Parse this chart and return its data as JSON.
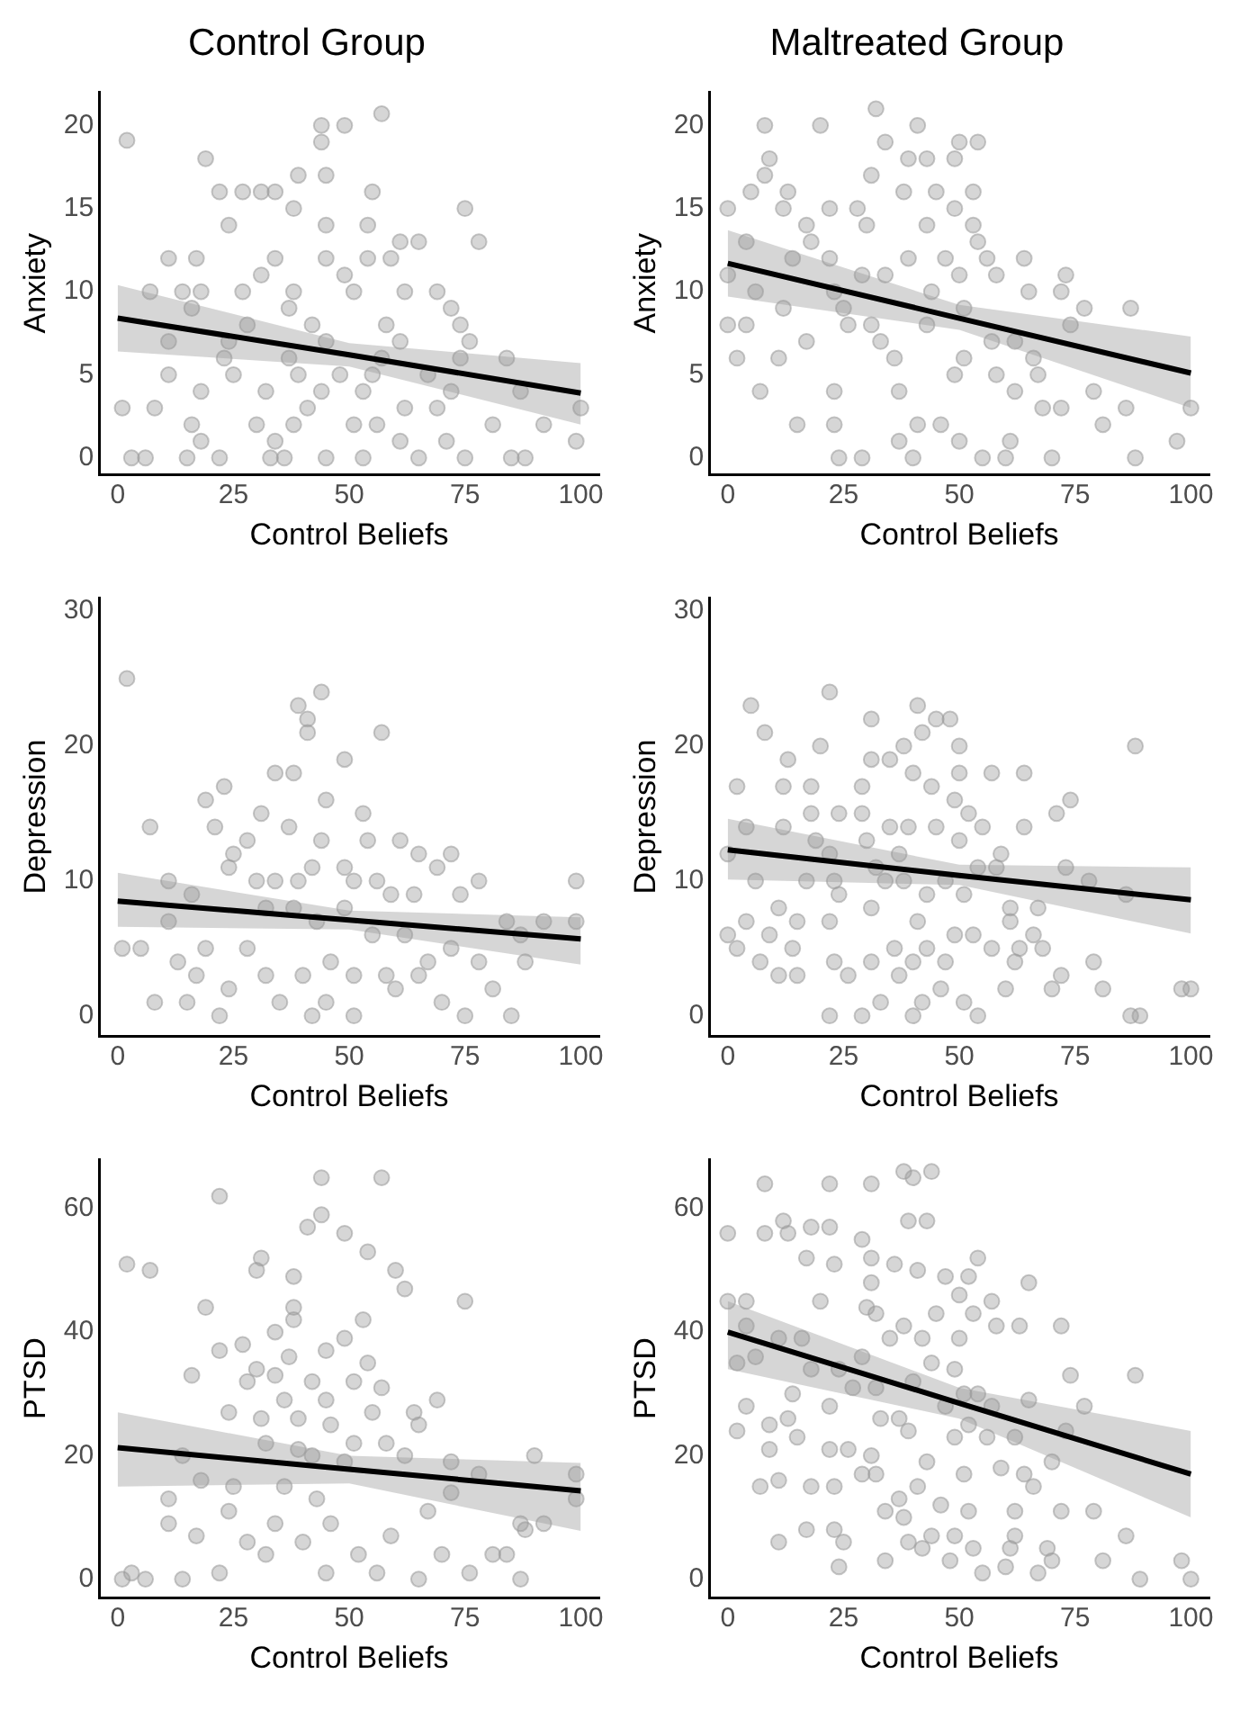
{
  "chart_data": [
    {
      "type": "scatter",
      "title": "Control Group",
      "xlabel": "Control Beliefs",
      "ylabel": "Anxiety",
      "xlim": [
        -4,
        104
      ],
      "xticks": [
        0,
        25,
        50,
        75,
        100
      ],
      "ylim": [
        -1,
        22
      ],
      "yticks": [
        0,
        5,
        10,
        15,
        20
      ],
      "marker": "circle",
      "series": [
        {
          "type": "scatter",
          "color": "#999999",
          "x": [
            2,
            19,
            57,
            44,
            49,
            44,
            39,
            45,
            22,
            27,
            31,
            34,
            55,
            38,
            75,
            24,
            45,
            54,
            61,
            65,
            78,
            11,
            17,
            34,
            45,
            54,
            59,
            31,
            49,
            7,
            14,
            18,
            27,
            38,
            51,
            62,
            69,
            16,
            37,
            72,
            28,
            42,
            58,
            74,
            11,
            24,
            45,
            61,
            76,
            23,
            37,
            57,
            74,
            84,
            11,
            25,
            39,
            48,
            55,
            67,
            18,
            32,
            44,
            53,
            72,
            87,
            1,
            8,
            41,
            62,
            69,
            100,
            16,
            30,
            38,
            51,
            56,
            81,
            92,
            18,
            34,
            61,
            71,
            99,
            3,
            6,
            15,
            22,
            33,
            36,
            45,
            53,
            65,
            75,
            85,
            88
          ],
          "values": [
            19.1,
            18,
            20.7,
            20,
            20,
            19,
            17,
            17,
            16,
            16,
            16,
            16,
            16,
            15,
            15,
            14,
            14,
            14,
            13,
            13,
            13,
            12,
            12,
            12,
            12,
            12,
            12,
            11,
            11,
            10,
            10,
            10,
            10,
            10,
            10,
            10,
            10,
            9,
            9,
            9,
            8,
            8,
            8,
            8,
            7,
            7,
            7,
            7,
            7,
            6,
            6,
            6,
            6,
            6,
            5,
            5,
            5,
            5,
            5,
            5,
            4,
            4,
            4,
            4,
            4,
            4,
            3,
            3,
            3,
            3,
            3,
            3,
            2,
            2,
            2,
            2,
            2,
            2,
            2,
            1,
            1,
            1,
            1,
            1,
            0,
            0,
            0,
            0,
            0,
            0,
            0,
            0,
            0,
            0,
            0,
            0
          ]
        },
        {
          "type": "line",
          "marker": "none",
          "color": "#000000",
          "x": [
            0,
            50,
            100
          ],
          "values": [
            8.4,
            6.2,
            3.9
          ],
          "lower": [
            6.4,
            5.5,
            2.0
          ],
          "upper": [
            10.4,
            6.9,
            5.7
          ]
        }
      ]
    },
    {
      "type": "scatter",
      "title": "Maltreated Group",
      "xlabel": "Control Beliefs",
      "ylabel": "Anxiety",
      "xlim": [
        -4,
        104
      ],
      "xticks": [
        0,
        25,
        50,
        75,
        100
      ],
      "ylim": [
        -1,
        22
      ],
      "yticks": [
        0,
        5,
        10,
        15,
        20
      ],
      "marker": "circle",
      "series": [
        {
          "type": "scatter",
          "color": "#999999",
          "x": [
            0,
            0,
            0,
            2,
            4,
            4,
            5,
            6,
            8,
            8,
            9,
            7,
            11,
            12,
            12,
            13,
            14,
            15,
            17,
            17,
            18,
            20,
            22,
            22,
            23,
            23,
            23,
            24,
            25,
            26,
            28,
            29,
            29,
            30,
            31,
            32,
            31,
            33,
            34,
            34,
            36,
            37,
            37,
            39,
            38,
            39,
            40,
            41,
            41,
            43,
            43,
            43,
            44,
            45,
            46,
            47,
            49,
            49,
            49,
            50,
            50,
            51,
            51,
            50,
            53,
            53,
            54,
            54,
            55,
            56,
            57,
            58,
            58,
            60,
            61,
            62,
            62,
            64,
            65,
            66,
            67,
            68,
            70,
            72,
            72,
            73,
            74,
            77,
            79,
            81,
            86,
            87,
            88,
            97,
            100
          ],
          "values": [
            15,
            11,
            8,
            6,
            13,
            8,
            16,
            10,
            17,
            20,
            18,
            4,
            6,
            9,
            15,
            16,
            12,
            2,
            14,
            7,
            13,
            20,
            15,
            12,
            10,
            4,
            2,
            0,
            9,
            8,
            15,
            11,
            0,
            14,
            8,
            21,
            17,
            7,
            19,
            11,
            6,
            1,
            4,
            18,
            16,
            12,
            0,
            2,
            20,
            18,
            14,
            8,
            10,
            16,
            2,
            12,
            18,
            15,
            5,
            19,
            11,
            6,
            9,
            1,
            16,
            14,
            19,
            13,
            0,
            12,
            7,
            11,
            5,
            0,
            1,
            4,
            7,
            12,
            10,
            6,
            5,
            3,
            0,
            3,
            10,
            11,
            8,
            9,
            4,
            2,
            3,
            9,
            0,
            1,
            3
          ]
        },
        {
          "type": "line",
          "marker": "none",
          "color": "#000000",
          "x": [
            0,
            50,
            100
          ],
          "values": [
            11.7,
            8.4,
            5.1
          ],
          "lower": [
            9.7,
            7.7,
            3.0
          ],
          "upper": [
            13.7,
            9.2,
            7.3
          ]
        }
      ]
    },
    {
      "type": "scatter",
      "xlabel": "Control Beliefs",
      "ylabel": "Depression",
      "xlim": [
        -4,
        104
      ],
      "xticks": [
        0,
        25,
        50,
        75,
        100
      ],
      "ylim": [
        -1.5,
        31
      ],
      "yticks": [
        0,
        10,
        20,
        30
      ],
      "marker": "circle",
      "series": [
        {
          "type": "scatter",
          "color": "#999999",
          "x": [
            2,
            7,
            8,
            1,
            5,
            11,
            11,
            13,
            15,
            16,
            17,
            19,
            19,
            21,
            23,
            22,
            24,
            24,
            25,
            28,
            28,
            30,
            31,
            32,
            32,
            34,
            34,
            35,
            37,
            38,
            38,
            39,
            39,
            40,
            41,
            41,
            42,
            42,
            43,
            44,
            44,
            45,
            45,
            46,
            49,
            49,
            49,
            51,
            51,
            51,
            53,
            54,
            55,
            56,
            57,
            58,
            59,
            60,
            61,
            62,
            64,
            65,
            65,
            67,
            69,
            70,
            72,
            72,
            74,
            75,
            78,
            78,
            81,
            84,
            85,
            87,
            88,
            92,
            99,
            99
          ],
          "values": [
            25,
            14,
            1,
            5,
            5,
            10,
            7,
            4,
            1,
            9,
            3,
            16,
            5,
            14,
            17,
            0,
            11,
            2,
            12,
            5,
            13,
            10,
            15,
            3,
            8,
            18,
            10,
            1,
            14,
            18,
            8,
            10,
            23,
            3,
            21,
            22,
            0,
            11,
            7,
            13,
            24,
            16,
            1,
            4,
            19,
            11,
            8,
            3,
            10,
            0,
            15,
            13,
            6,
            10,
            21,
            3,
            9,
            2,
            13,
            6,
            9,
            12,
            3,
            4,
            11,
            1,
            12,
            5,
            9,
            0,
            10,
            4,
            2,
            7,
            0,
            6,
            4,
            7,
            10,
            7
          ]
        },
        {
          "type": "line",
          "marker": "none",
          "color": "#000000",
          "x": [
            0,
            50,
            100
          ],
          "values": [
            8.5,
            7.1,
            5.7
          ],
          "lower": [
            6.6,
            6.4,
            3.8
          ],
          "upper": [
            10.6,
            7.8,
            7.3
          ]
        }
      ]
    },
    {
      "type": "scatter",
      "xlabel": "Control Beliefs",
      "ylabel": "Depression",
      "xlim": [
        -4,
        104
      ],
      "xticks": [
        0,
        25,
        50,
        75,
        100
      ],
      "ylim": [
        -1.5,
        31
      ],
      "yticks": [
        0,
        10,
        20,
        30
      ],
      "marker": "circle",
      "series": [
        {
          "type": "scatter",
          "color": "#999999",
          "x": [
            0,
            0,
            2,
            2,
            4,
            4,
            5,
            6,
            7,
            8,
            9,
            11,
            11,
            12,
            12,
            13,
            14,
            15,
            15,
            17,
            18,
            18,
            19,
            20,
            22,
            22,
            22,
            23,
            22,
            23,
            24,
            24,
            26,
            29,
            29,
            30,
            31,
            31,
            31,
            29,
            31,
            32,
            33,
            34,
            35,
            35,
            36,
            37,
            37,
            38,
            38,
            39,
            40,
            40,
            40,
            41,
            41,
            42,
            42,
            43,
            43,
            44,
            45,
            45,
            46,
            47,
            47,
            48,
            49,
            49,
            50,
            50,
            50,
            51,
            51,
            52,
            53,
            54,
            54,
            55,
            57,
            57,
            58,
            59,
            60,
            61,
            61,
            62,
            63,
            64,
            64,
            66,
            67,
            68,
            70,
            71,
            72,
            73,
            74,
            78,
            79,
            81,
            86,
            87,
            88,
            89,
            98,
            100
          ],
          "values": [
            12,
            6,
            5,
            17,
            14,
            7,
            23,
            10,
            4,
            21,
            6,
            3,
            8,
            14,
            17,
            19,
            5,
            7,
            3,
            10,
            17,
            15,
            13,
            20,
            24,
            7,
            12,
            10,
            0,
            4,
            15,
            9,
            3,
            15,
            17,
            13,
            22,
            8,
            4,
            0,
            19,
            11,
            1,
            10,
            19,
            14,
            5,
            3,
            12,
            20,
            10,
            14,
            18,
            4,
            0,
            23,
            7,
            21,
            1,
            9,
            5,
            17,
            22,
            14,
            2,
            4,
            10,
            22,
            6,
            16,
            13,
            18,
            20,
            1,
            9,
            15,
            6,
            0,
            11,
            14,
            18,
            5,
            11,
            12,
            2,
            8,
            7,
            4,
            5,
            18,
            14,
            6,
            8,
            5,
            2,
            15,
            3,
            11,
            16,
            10,
            4,
            2,
            9,
            0,
            20,
            0,
            2,
            2
          ]
        },
        {
          "type": "line",
          "marker": "none",
          "color": "#000000",
          "x": [
            0,
            50,
            100
          ],
          "values": [
            12.3,
            10.4,
            8.6
          ],
          "lower": [
            10.1,
            9.7,
            6.1
          ],
          "upper": [
            14.6,
            11.2,
            11.0
          ]
        }
      ]
    },
    {
      "type": "scatter",
      "xlabel": "Control Beliefs",
      "ylabel": "PTSD",
      "xlim": [
        -4,
        104
      ],
      "xticks": [
        0,
        25,
        50,
        75,
        100
      ],
      "ylim": [
        -3,
        68
      ],
      "yticks": [
        0,
        20,
        40,
        60
      ],
      "marker": "circle",
      "series": [
        {
          "type": "scatter",
          "color": "#999999",
          "x": [
            2,
            7,
            1,
            3,
            6,
            14,
            11,
            11,
            14,
            16,
            17,
            18,
            19,
            22,
            22,
            22,
            24,
            24,
            25,
            27,
            28,
            28,
            30,
            30,
            31,
            31,
            32,
            32,
            34,
            34,
            34,
            36,
            36,
            37,
            38,
            38,
            38,
            39,
            39,
            40,
            41,
            42,
            42,
            43,
            44,
            44,
            45,
            45,
            45,
            46,
            46,
            49,
            49,
            49,
            51,
            51,
            52,
            53,
            54,
            54,
            55,
            56,
            57,
            57,
            58,
            59,
            60,
            62,
            62,
            64,
            65,
            65,
            67,
            69,
            70,
            72,
            72,
            75,
            76,
            78,
            81,
            84,
            87,
            87,
            88,
            90,
            92,
            99,
            99
          ],
          "values": [
            51,
            50,
            0,
            1,
            0,
            0,
            13,
            9,
            20,
            33,
            7,
            16,
            44,
            62,
            37,
            1,
            27,
            11,
            15,
            38,
            32,
            6,
            34,
            50,
            52,
            26,
            4,
            22,
            40,
            9,
            33,
            29,
            15,
            36,
            49,
            44,
            42,
            21,
            26,
            6,
            57,
            20,
            32,
            13,
            59,
            65,
            37,
            29,
            1,
            25,
            9,
            56,
            39,
            19,
            32,
            22,
            4,
            42,
            53,
            35,
            27,
            1,
            65,
            31,
            22,
            7,
            50,
            20,
            47,
            27,
            25,
            0,
            11,
            29,
            4,
            19,
            14,
            45,
            1,
            17,
            4,
            4,
            9,
            0,
            8,
            20,
            9,
            17,
            13
          ]
        },
        {
          "type": "line",
          "marker": "none",
          "color": "#000000",
          "x": [
            0,
            50,
            100
          ],
          "values": [
            21.3,
            17.8,
            14.3
          ],
          "lower": [
            15,
            15.5,
            7.8
          ],
          "upper": [
            27,
            20,
            18.8
          ]
        }
      ]
    },
    {
      "type": "scatter",
      "xlabel": "Control Beliefs",
      "ylabel": "PTSD",
      "xlim": [
        -4,
        104
      ],
      "xticks": [
        0,
        25,
        50,
        75,
        100
      ],
      "ylim": [
        -3,
        68
      ],
      "yticks": [
        0,
        20,
        40,
        60
      ],
      "marker": "circle",
      "series": [
        {
          "type": "scatter",
          "color": "#999999",
          "x": [
            0,
            0,
            2,
            2,
            4,
            4,
            4,
            6,
            7,
            8,
            8,
            9,
            9,
            11,
            11,
            12,
            11,
            13,
            13,
            14,
            15,
            16,
            17,
            17,
            18,
            18,
            18,
            20,
            22,
            22,
            22,
            22,
            23,
            23,
            23,
            24,
            24,
            25,
            26,
            27,
            29,
            29,
            29,
            30,
            31,
            31,
            31,
            31,
            32,
            32,
            32,
            33,
            34,
            34,
            35,
            36,
            37,
            37,
            38,
            38,
            38,
            39,
            39,
            39,
            40,
            40,
            41,
            41,
            42,
            42,
            43,
            43,
            44,
            44,
            44,
            45,
            46,
            47,
            47,
            48,
            49,
            49,
            49,
            50,
            50,
            51,
            51,
            52,
            52,
            52,
            53,
            53,
            54,
            54,
            55,
            56,
            57,
            57,
            58,
            59,
            60,
            61,
            62,
            62,
            62,
            63,
            64,
            65,
            65,
            66,
            67,
            69,
            70,
            70,
            72,
            72,
            73,
            74,
            77,
            79,
            81,
            86,
            88,
            89,
            98,
            100
          ],
          "values": [
            56,
            45,
            35,
            24,
            45,
            28,
            41,
            36,
            15,
            64,
            56,
            21,
            25,
            6,
            39,
            58,
            16,
            56,
            26,
            30,
            23,
            39,
            52,
            8,
            34,
            15,
            57,
            45,
            64,
            28,
            57,
            21,
            15,
            8,
            51,
            2,
            34,
            6,
            21,
            31,
            36,
            55,
            17,
            44,
            52,
            48,
            64,
            20,
            31,
            43,
            17,
            26,
            11,
            3,
            39,
            51,
            13,
            26,
            66,
            10,
            41,
            58,
            6,
            24,
            32,
            65,
            15,
            50,
            5,
            39,
            58,
            19,
            35,
            66,
            7,
            43,
            12,
            49,
            28,
            3,
            23,
            7,
            34,
            46,
            39,
            17,
            30,
            25,
            49,
            11,
            5,
            43,
            30,
            52,
            1,
            23,
            28,
            45,
            41,
            18,
            2,
            5,
            11,
            7,
            23,
            41,
            17,
            48,
            29,
            15,
            1,
            5,
            3,
            19,
            11,
            41,
            24,
            33,
            28,
            11,
            3,
            7,
            33,
            0,
            3,
            0
          ]
        },
        {
          "type": "line",
          "marker": "none",
          "color": "#000000",
          "x": [
            0,
            50,
            100
          ],
          "values": [
            40,
            28.5,
            17
          ],
          "lower": [
            34,
            26,
            10
          ],
          "upper": [
            45,
            31,
            24
          ]
        }
      ]
    }
  ]
}
